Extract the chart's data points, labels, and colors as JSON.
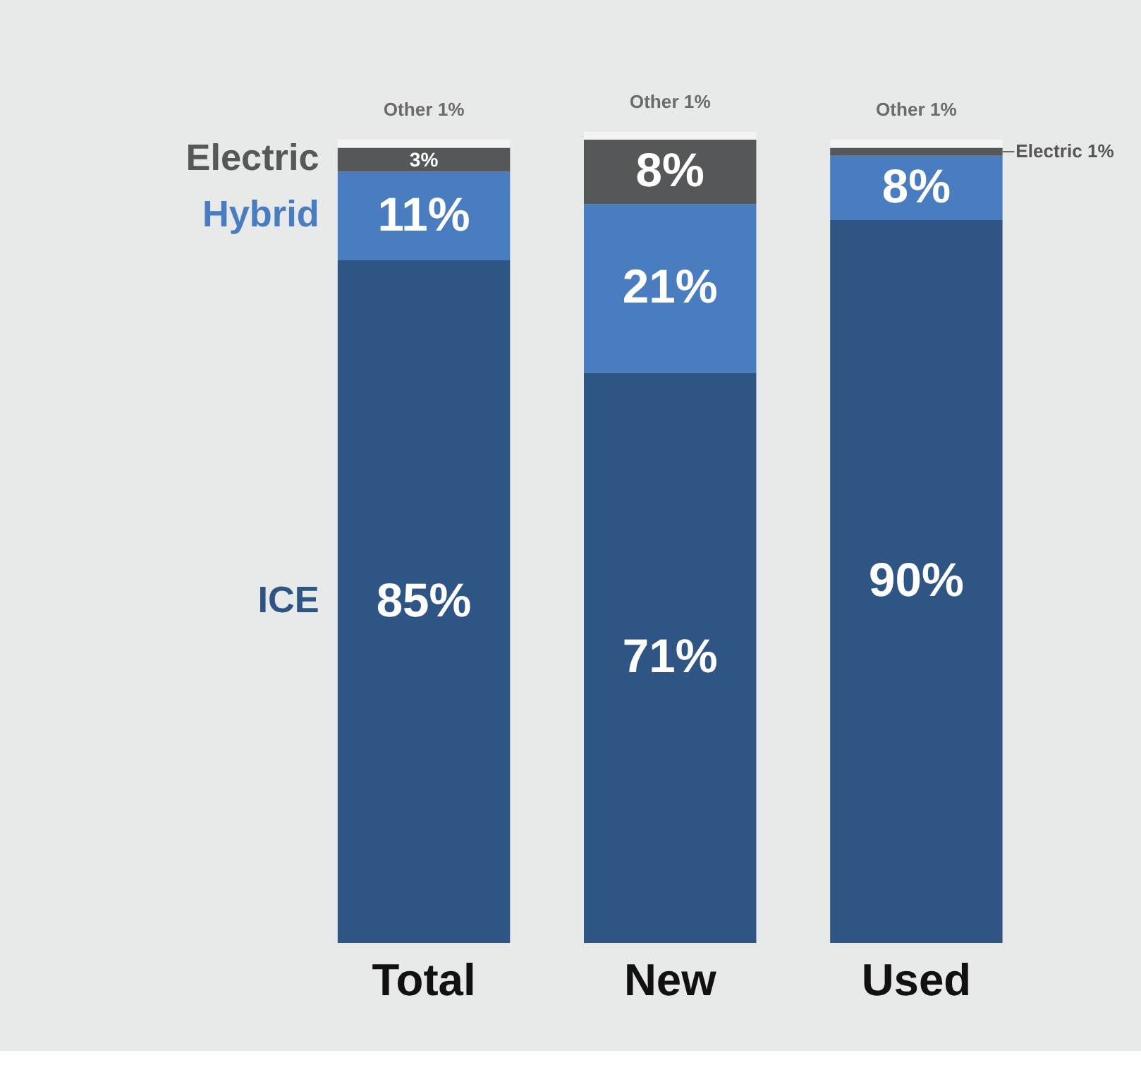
{
  "chart_data": {
    "type": "bar",
    "stacked": true,
    "categories": [
      "Total",
      "New",
      "Used"
    ],
    "tick_labels": "x",
    "grid": false,
    "legend": "left",
    "series": [
      {
        "name": "ICE",
        "color": "#2f5585",
        "values": [
          85,
          71,
          90
        ],
        "value_labels": [
          "85%",
          "71%",
          "90%"
        ]
      },
      {
        "name": "Hybrid",
        "color": "#4a7cc0",
        "values": [
          11,
          21,
          8
        ],
        "value_labels": [
          "11%",
          "21%",
          "8%"
        ]
      },
      {
        "name": "Electric",
        "color": "#555759",
        "values": [
          3,
          8,
          1
        ],
        "value_labels": [
          "3%",
          "8%",
          "Electric 1%"
        ]
      },
      {
        "color": "#f4f4f4",
        "values": [
          1,
          1,
          1
        ],
        "value_labels": [
          "Other 1%",
          "Other 1%",
          "Other 1%"
        ]
      }
    ]
  }
}
